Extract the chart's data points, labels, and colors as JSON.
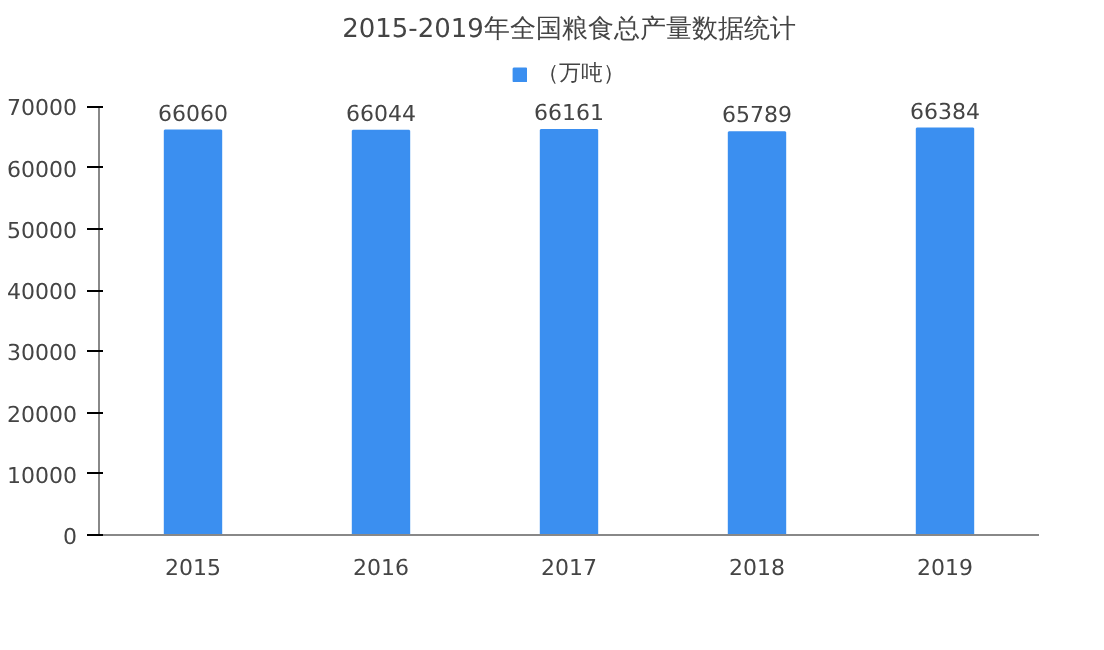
{
  "chart_data": {
    "type": "bar",
    "title": "2015-2019年全国粮食总产量数据统计",
    "categories": [
      "2015",
      "2016",
      "2017",
      "2018",
      "2019"
    ],
    "series": [
      {
        "name": "（万吨）",
        "color": "#3b8ff0",
        "values": [
          66060,
          66044,
          66161,
          65789,
          66384
        ]
      }
    ],
    "ylim": [
      0,
      70000
    ],
    "yticks": [
      0,
      10000,
      20000,
      30000,
      40000,
      50000,
      60000,
      70000
    ],
    "grid": false,
    "legend": "top",
    "data_labels": true
  }
}
